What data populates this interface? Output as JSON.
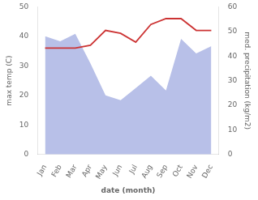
{
  "chart_data": {
    "type": "line",
    "categories": [
      "Jan",
      "Feb",
      "Mar",
      "Apr",
      "May",
      "Jun",
      "Jul",
      "Aug",
      "Sep",
      "Oct",
      "Nov",
      "Dec"
    ],
    "series": [
      {
        "type": "area",
        "axis": "y2",
        "color": "#b8c0e8",
        "values": [
          48,
          46,
          49,
          37,
          24,
          22,
          27,
          32,
          26,
          47,
          41,
          44
        ]
      },
      {
        "type": "line",
        "color": "#cc3333",
        "values": [
          36,
          36,
          36,
          37,
          42,
          41,
          38,
          44,
          46,
          46,
          42,
          42
        ]
      }
    ],
    "xlabel": "date (month)",
    "ylabel": "max temp (C)",
    "y2label": "med. precipitation (kg/m2)",
    "ylim": [
      0,
      50
    ],
    "yticks": [
      0,
      10,
      20,
      30,
      40,
      50
    ],
    "y2lim": [
      0,
      60
    ],
    "y2ticks": [
      0,
      10,
      20,
      30,
      40,
      50,
      60
    ],
    "grid": false
  }
}
